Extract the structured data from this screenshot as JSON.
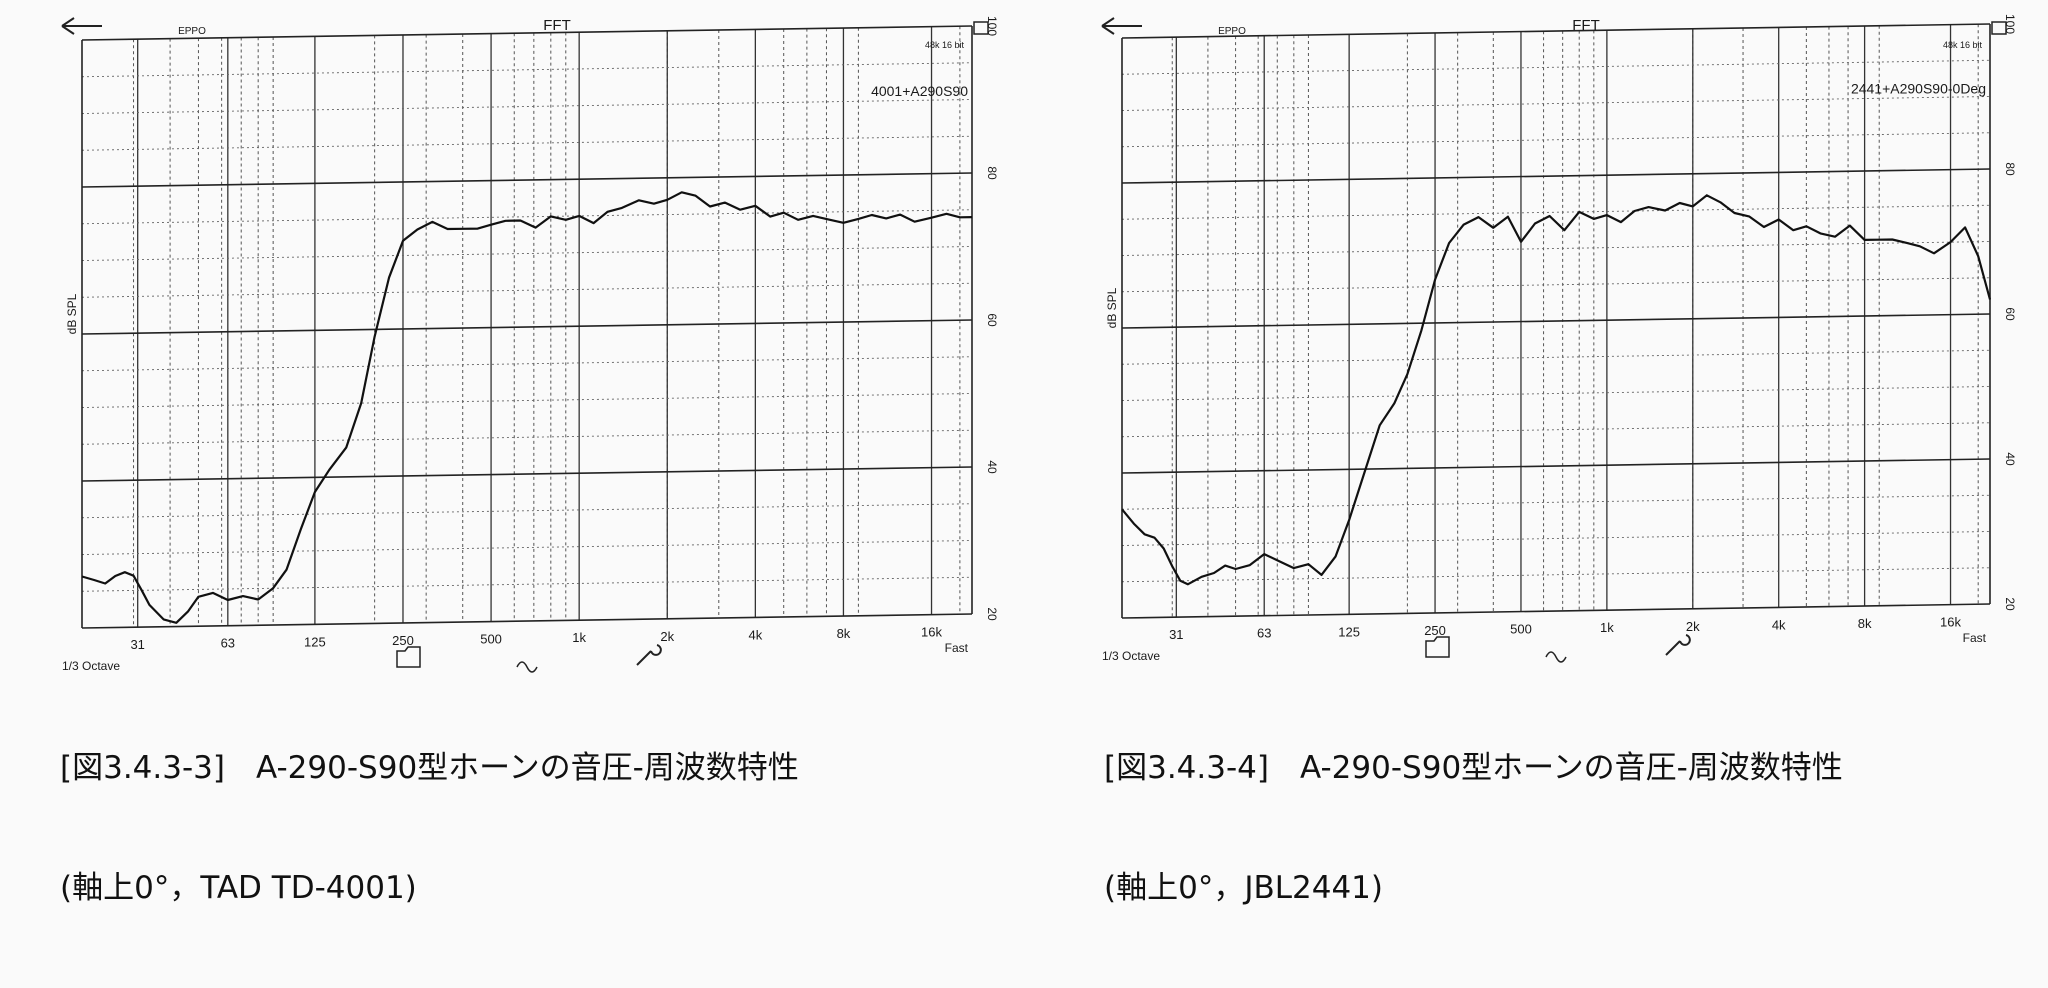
{
  "charts": [
    {
      "caption_line1": "[図3.4.3-3]　A-290-S90型ホーンの音圧-周波数特性",
      "caption_line2": "(軸上0°，TAD TD-4001)"
    },
    {
      "caption_line1": "[図3.4.3-4]　A-290-S90型ホーンの音圧-周波数特性",
      "caption_line2": "(軸上0°，JBL2441)"
    }
  ],
  "chart_data": [
    {
      "type": "line",
      "title": "FFT",
      "header_left": "EPPO",
      "header_right": "48k 16 bit",
      "xscale": "log",
      "xlim": [
        20,
        22000
      ],
      "ylim": [
        20,
        100
      ],
      "ylabel": "dB SPL",
      "xtick_values": [
        31,
        63,
        125,
        250,
        500,
        1000,
        2000,
        4000,
        8000,
        16000
      ],
      "xtick_labels": [
        "31",
        "63",
        "125",
        "250",
        "500",
        "1k",
        "2k",
        "4k",
        "8k",
        "16k"
      ],
      "ytick_values": [
        20,
        40,
        60,
        80,
        100
      ],
      "ytick_labels": [
        "20",
        "40",
        "60",
        "80",
        "100"
      ],
      "bottom_left": "1/3 Octave",
      "bottom_right": "Fast",
      "legend": "4001+A290S90",
      "grid": true,
      "series": [
        {
          "name": "4001+A290S90",
          "x": [
            20,
            22,
            24,
            26,
            28,
            30,
            32,
            34,
            38,
            42,
            46,
            50,
            56,
            63,
            71,
            80,
            90,
            100,
            112,
            125,
            140,
            160,
            180,
            200,
            224,
            250,
            280,
            315,
            355,
            400,
            450,
            500,
            560,
            630,
            710,
            800,
            900,
            1000,
            1120,
            1250,
            1400,
            1600,
            1800,
            2000,
            2240,
            2500,
            2800,
            3150,
            3550,
            4000,
            4500,
            5000,
            5600,
            6300,
            7100,
            8000,
            9000,
            10000,
            11200,
            12500,
            14000,
            16000,
            18000,
            20000,
            22000
          ],
          "y": [
            27,
            26.5,
            26,
            27,
            27.5,
            27,
            25,
            23,
            21,
            20.5,
            22,
            24,
            24.5,
            23.5,
            24,
            23.5,
            25,
            27.5,
            33,
            38,
            41,
            44,
            50,
            59,
            67,
            72,
            73.5,
            74.5,
            73.5,
            73.5,
            73.5,
            74,
            74.5,
            74.5,
            73.5,
            75,
            74.5,
            75,
            74,
            75.5,
            76,
            77,
            76.5,
            77,
            78,
            77.5,
            76,
            76.5,
            75.5,
            76,
            74.5,
            75,
            74,
            74.5,
            74,
            73.5,
            74,
            74.5,
            74,
            74.5,
            73.5,
            74,
            74.5,
            74,
            74
          ]
        }
      ]
    },
    {
      "type": "line",
      "title": "FFT",
      "header_left": "EPPO",
      "header_right": "48k 16 bit",
      "xscale": "log",
      "xlim": [
        20,
        22000
      ],
      "ylim": [
        20,
        100
      ],
      "ylabel": "dB SPL",
      "xtick_values": [
        31,
        63,
        125,
        250,
        500,
        1000,
        2000,
        4000,
        8000,
        16000
      ],
      "xtick_labels": [
        "31",
        "63",
        "125",
        "250",
        "500",
        "1k",
        "2k",
        "4k",
        "8k",
        "16k"
      ],
      "ytick_values": [
        20,
        40,
        60,
        80,
        100
      ],
      "ytick_labels": [
        "20",
        "40",
        "60",
        "80",
        "100"
      ],
      "bottom_left": "1/3 Octave",
      "bottom_right": "Fast",
      "legend": "2441+A290S90-0Deg",
      "grid": true,
      "series": [
        {
          "name": "2441+A290S90-0Deg",
          "x": [
            20,
            22,
            24,
            26,
            28,
            30,
            32,
            34,
            38,
            42,
            46,
            50,
            56,
            63,
            71,
            80,
            90,
            100,
            112,
            125,
            140,
            160,
            180,
            200,
            224,
            250,
            280,
            315,
            355,
            400,
            450,
            500,
            560,
            630,
            710,
            800,
            900,
            1000,
            1120,
            1250,
            1400,
            1600,
            1800,
            2000,
            2240,
            2500,
            2800,
            3150,
            3550,
            4000,
            4500,
            5000,
            5600,
            6300,
            7100,
            8000,
            9000,
            10000,
            11200,
            12500,
            14000,
            16000,
            18000,
            20000,
            22000
          ],
          "y": [
            35,
            33,
            31.5,
            31,
            29.5,
            27,
            25,
            24.5,
            25.5,
            26,
            27,
            26.5,
            27,
            28.5,
            27.5,
            26.5,
            27,
            25.5,
            28,
            33,
            39,
            46,
            49,
            53,
            59,
            66,
            71,
            73.5,
            74.5,
            73,
            74.5,
            71,
            73.5,
            74.5,
            72.5,
            75,
            74,
            74.5,
            73.5,
            75,
            75.5,
            75,
            76,
            75.5,
            77,
            76,
            74.5,
            74,
            72.5,
            73.5,
            72,
            72.5,
            71.5,
            71,
            72.5,
            70.5,
            70.5,
            70.5,
            70,
            69.5,
            68.5,
            70,
            72,
            68,
            62
          ]
        }
      ]
    }
  ]
}
